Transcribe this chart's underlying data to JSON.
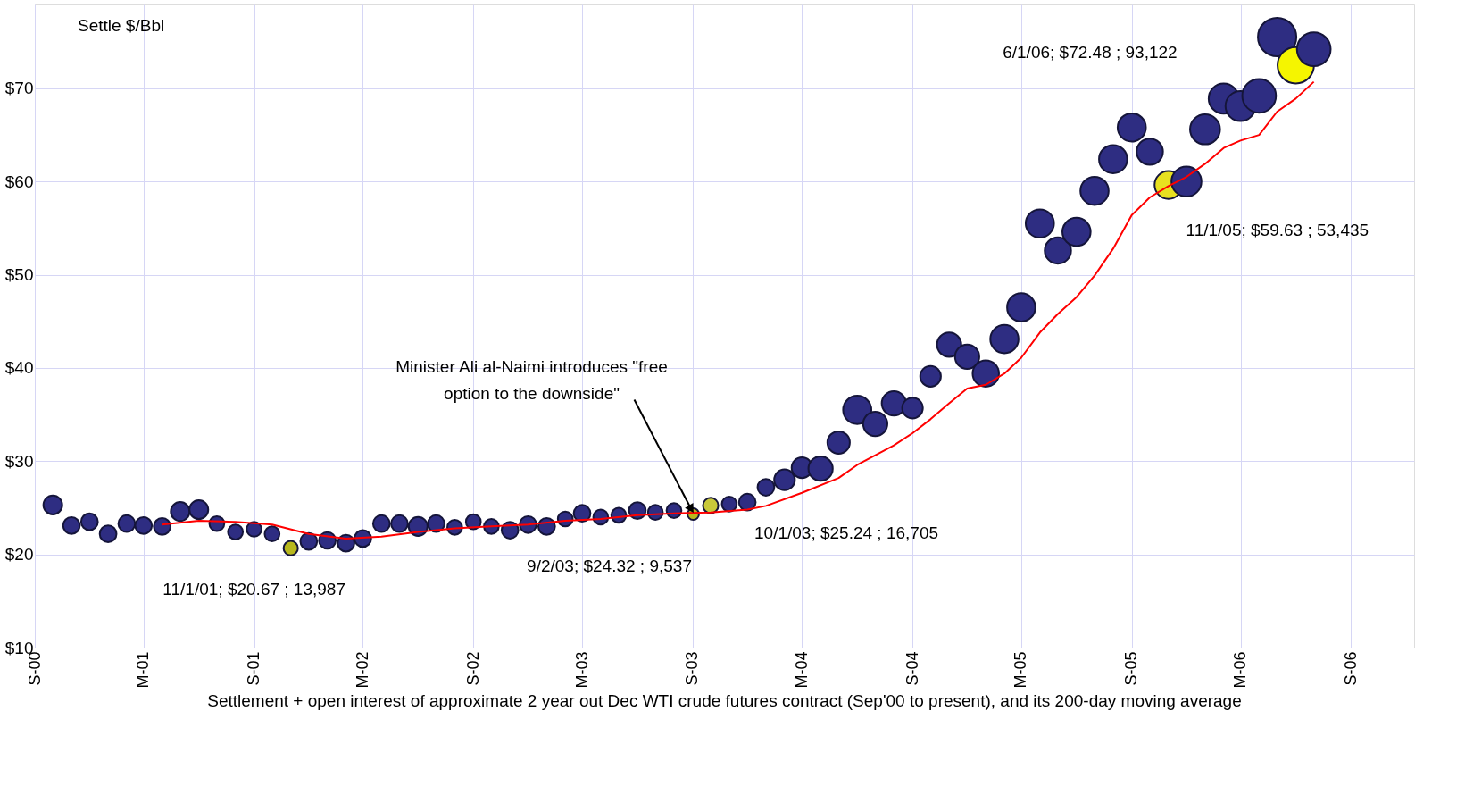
{
  "chart_data": {
    "type": "bubble",
    "xlabel": "Settlement + open interest of approximate 2 year out Dec WTI crude futures contract (Sep'00 to present), and its 200-day moving average",
    "ylabel": "Settle $/Bbl",
    "x": [
      "2000-10-01",
      "2000-11-01",
      "2000-12-01",
      "2001-01-01",
      "2001-02-01",
      "2001-03-01",
      "2001-04-01",
      "2001-05-01",
      "2001-06-01",
      "2001-07-01",
      "2001-08-01",
      "2001-09-01",
      "2001-10-01",
      "2001-11-01",
      "2001-12-01",
      "2002-01-01",
      "2002-02-01",
      "2002-03-01",
      "2002-04-01",
      "2002-05-01",
      "2002-06-01",
      "2002-07-01",
      "2002-08-01",
      "2002-09-01",
      "2002-10-01",
      "2002-11-01",
      "2002-12-01",
      "2003-01-01",
      "2003-02-01",
      "2003-03-01",
      "2003-04-01",
      "2003-05-01",
      "2003-06-01",
      "2003-07-01",
      "2003-08-01",
      "2003-09-02",
      "2003-10-01",
      "2003-11-01",
      "2003-12-01",
      "2004-01-01",
      "2004-02-01",
      "2004-03-01",
      "2004-04-01",
      "2004-05-01",
      "2004-06-01",
      "2004-07-01",
      "2004-08-01",
      "2004-09-01",
      "2004-10-01",
      "2004-11-01",
      "2004-12-01",
      "2005-01-01",
      "2005-02-01",
      "2005-03-01",
      "2005-04-01",
      "2005-05-01",
      "2005-06-01",
      "2005-07-01",
      "2005-08-01",
      "2005-09-01",
      "2005-10-01",
      "2005-11-01",
      "2005-12-01",
      "2006-01-01",
      "2006-02-01",
      "2006-03-01",
      "2006-04-01",
      "2006-05-01",
      "2006-06-01",
      "2006-07-01"
    ],
    "series": [
      {
        "colors": [
          "#2e2d82",
          "#2e2d82",
          "#2e2d82",
          "#2e2d82",
          "#2e2d82",
          "#2e2d82",
          "#2e2d82",
          "#2e2d82",
          "#2e2d82",
          "#2e2d82",
          "#2e2d82",
          "#2e2d82",
          "#2e2d82",
          "#b8b81e",
          "#2e2d82",
          "#2e2d82",
          "#2e2d82",
          "#2e2d82",
          "#2e2d82",
          "#2e2d82",
          "#2e2d82",
          "#2e2d82",
          "#2e2d82",
          "#2e2d82",
          "#2e2d82",
          "#2e2d82",
          "#2e2d82",
          "#2e2d82",
          "#2e2d82",
          "#2e2d82",
          "#2e2d82",
          "#2e2d82",
          "#2e2d82",
          "#2e2d82",
          "#2e2d82",
          "#b8b81e",
          "#c8c83a",
          "#2e2d82",
          "#2e2d82",
          "#2e2d82",
          "#2e2d82",
          "#2e2d82",
          "#2e2d82",
          "#2e2d82",
          "#2e2d82",
          "#2e2d82",
          "#2e2d82",
          "#2e2d82",
          "#2e2d82",
          "#2e2d82",
          "#2e2d82",
          "#2e2d82",
          "#2e2d82",
          "#2e2d82",
          "#2e2d82",
          "#2e2d82",
          "#2e2d82",
          "#2e2d82",
          "#2e2d82",
          "#2e2d82",
          "#2e2d82",
          "#e8e020",
          "#2e2d82",
          "#2e2d82",
          "#2e2d82",
          "#2e2d82",
          "#2e2d82",
          "#2e2d82",
          "#f5f500",
          "#2e2d82"
        ],
        "values": [
          25.3,
          23.1,
          23.5,
          22.2,
          23.3,
          23.1,
          23.0,
          24.6,
          24.8,
          23.3,
          22.4,
          22.7,
          22.2,
          20.67,
          21.4,
          21.5,
          21.2,
          21.7,
          23.3,
          23.3,
          23.0,
          23.3,
          22.9,
          23.5,
          23.0,
          22.6,
          23.2,
          23.0,
          23.8,
          24.4,
          24.0,
          24.2,
          24.7,
          24.5,
          24.7,
          24.32,
          25.24,
          25.4,
          25.6,
          27.2,
          28.0,
          29.3,
          29.2,
          32.0,
          35.5,
          34.0,
          36.2,
          35.7,
          39.1,
          42.5,
          41.2,
          39.4,
          43.1,
          46.5,
          55.5,
          52.6,
          54.6,
          59.0,
          62.4,
          65.8,
          63.2,
          59.63,
          60.0,
          65.6,
          68.9,
          68.1,
          69.2,
          75.5,
          72.48,
          74.2
        ],
        "sizes": [
          0.24,
          0.19,
          0.19,
          0.19,
          0.19,
          0.19,
          0.19,
          0.24,
          0.24,
          0.15,
          0.15,
          0.15,
          0.15,
          0.14,
          0.19,
          0.19,
          0.19,
          0.19,
          0.19,
          0.19,
          0.24,
          0.19,
          0.15,
          0.15,
          0.15,
          0.19,
          0.19,
          0.19,
          0.15,
          0.19,
          0.15,
          0.15,
          0.19,
          0.15,
          0.15,
          0.09,
          0.16,
          0.15,
          0.19,
          0.19,
          0.29,
          0.29,
          0.4,
          0.34,
          0.54,
          0.4,
          0.4,
          0.29,
          0.29,
          0.4,
          0.4,
          0.47,
          0.54,
          0.54,
          0.54,
          0.47,
          0.54,
          0.54,
          0.54,
          0.54,
          0.47,
          0.52,
          0.61,
          0.61,
          0.61,
          0.61,
          0.77,
          1,
          0.9,
          0.77
        ]
      },
      {
        "type": "line",
        "color": "#ff0000",
        "x": [
          "2001-04-01",
          "2001-06-01",
          "2001-08-01",
          "2001-10-01",
          "2001-12-01",
          "2002-02-01",
          "2002-04-01",
          "2002-06-01",
          "2002-08-01",
          "2002-10-01",
          "2002-12-01",
          "2003-02-01",
          "2003-04-01",
          "2003-06-01",
          "2003-08-01",
          "2003-10-01",
          "2003-12-01",
          "2004-01-01",
          "2004-03-01",
          "2004-05-01",
          "2004-06-01",
          "2004-08-01",
          "2004-09-01",
          "2004-10-01",
          "2004-11-01",
          "2004-12-01",
          "2005-01-01",
          "2005-02-01",
          "2005-03-01",
          "2005-04-01",
          "2005-05-01",
          "2005-06-01",
          "2005-07-01",
          "2005-08-01",
          "2005-09-01",
          "2005-10-01",
          "2005-11-01",
          "2005-12-01",
          "2006-01-01",
          "2006-02-01",
          "2006-03-01",
          "2006-04-01",
          "2006-05-01",
          "2006-06-01",
          "2006-07-01"
        ],
        "values": [
          23.2,
          23.6,
          23.5,
          23.2,
          22.2,
          21.7,
          21.9,
          22.4,
          22.8,
          23.0,
          23.2,
          23.6,
          23.8,
          24.2,
          24.4,
          24.5,
          24.8,
          25.2,
          26.6,
          28.2,
          29.6,
          31.7,
          33.0,
          34.5,
          36.2,
          37.8,
          38.2,
          39.4,
          41.1,
          43.8,
          45.8,
          47.6,
          49.9,
          52.8,
          56.4,
          58.3,
          59.5,
          60.5,
          61.9,
          63.6,
          64.4,
          65.0,
          67.5,
          68.9,
          70.7
        ]
      }
    ],
    "xlim": [
      "2000-09-01",
      "2006-12-15"
    ],
    "xticks": [
      {
        "value": "2000-09-01",
        "label": "S-00"
      },
      {
        "value": "2001-03-01",
        "label": "M-01"
      },
      {
        "value": "2001-09-01",
        "label": "S-01"
      },
      {
        "value": "2002-03-01",
        "label": "M-02"
      },
      {
        "value": "2002-09-01",
        "label": "S-02"
      },
      {
        "value": "2003-03-01",
        "label": "M-03"
      },
      {
        "value": "2003-09-01",
        "label": "S-03"
      },
      {
        "value": "2004-03-01",
        "label": "M-04"
      },
      {
        "value": "2004-09-01",
        "label": "S-04"
      },
      {
        "value": "2005-03-01",
        "label": "M-05"
      },
      {
        "value": "2005-09-01",
        "label": "S-05"
      },
      {
        "value": "2006-03-01",
        "label": "M-06"
      },
      {
        "value": "2006-09-01",
        "label": "S-06"
      }
    ],
    "ylim": [
      10,
      79
    ],
    "yticks": [
      {
        "value": 10,
        "label": "$10"
      },
      {
        "value": 20,
        "label": "$20"
      },
      {
        "value": 30,
        "label": "$30"
      },
      {
        "value": 40,
        "label": "$40"
      },
      {
        "value": 50,
        "label": "$50"
      },
      {
        "value": 60,
        "label": "$60"
      },
      {
        "value": 70,
        "label": "$70"
      }
    ],
    "grid": true,
    "annotations": [
      {
        "text": "11/1/01;  $20.67 ;  13,987",
        "x": "2001-11-01",
        "y": 20.67
      },
      {
        "text": "9/2/03;  $24.32 ;  9,537",
        "x": "2003-09-02",
        "y": 24.32
      },
      {
        "text": "10/1/03;  $25.24 ;  16,705",
        "x": "2003-10-01",
        "y": 25.24
      },
      {
        "text": "11/1/05;  $59.63 ;  53,435",
        "x": "2005-11-01",
        "y": 59.63
      },
      "6/1/06;  $72.48 ;  93,122",
      {
        "text": "Minister Ali al-Naimi introduces \"free\noption to the downside\"",
        "x": "2003-09-02",
        "y": 24.32
      }
    ]
  }
}
